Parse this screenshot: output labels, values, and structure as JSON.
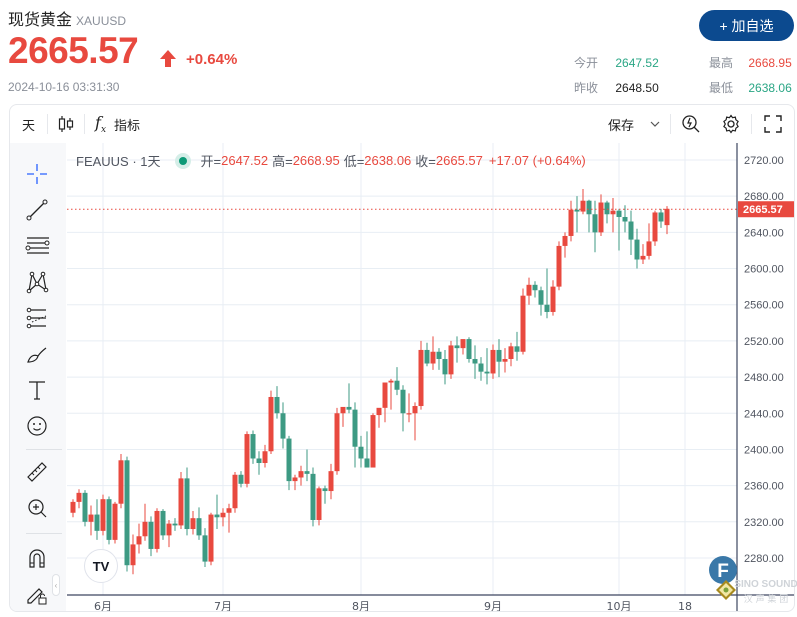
{
  "header": {
    "title": "现货黄金",
    "symbol": "XAUUSD",
    "price": "2665.57",
    "change_pct": "+0.64%",
    "timestamp": "2024-10-16 03:31:30",
    "add_watchlist_label": "+ 加自选",
    "stats": {
      "open_label": "今开",
      "open": "2647.52",
      "prev_close_label": "昨收",
      "prev_close": "2648.50",
      "high_label": "最高",
      "high": "2668.95",
      "low_label": "最低",
      "low": "2638.06"
    }
  },
  "toolbar": {
    "interval": "天",
    "indicators_label": "指标",
    "save_label": "保存"
  },
  "legend": {
    "symbol": "FEAUUS · 1天",
    "open_label": "开=",
    "open": "2647.52",
    "high_label": "高=",
    "high": "2668.95",
    "low_label": "低=",
    "low": "2638.06",
    "close_label": "收=",
    "close": "2665.57",
    "change": "+17.07 (+0.64%)"
  },
  "colors": {
    "up": "#e8493f",
    "down": "#3d9a83",
    "accent": "#0c4a8f",
    "grid": "#e8eef4"
  },
  "watermark": {
    "text": "SINO SOUND",
    "sub": "汉 声 集 团"
  },
  "chart_data": {
    "type": "candlestick",
    "title": "FEAUUS · 1天",
    "xlabel": "",
    "ylabel": "",
    "ylim": [
      2240,
      2730
    ],
    "y_ticks": [
      "2720.00",
      "2680.00",
      "2640.00",
      "2600.00",
      "2560.00",
      "2520.00",
      "2480.00",
      "2440.00",
      "2400.00",
      "2360.00",
      "2320.00",
      "2280.00"
    ],
    "x_ticks": [
      {
        "label": "6月",
        "index": 5
      },
      {
        "label": "7月",
        "index": 25
      },
      {
        "label": "8月",
        "index": 48
      },
      {
        "label": "9月",
        "index": 70
      },
      {
        "label": "10月",
        "index": 91
      },
      {
        "label": "18",
        "index": 102
      }
    ],
    "last_price_label": "2665.57",
    "up_color_meaning": "red = close > open",
    "candles": [
      [
        2330,
        2345,
        2325,
        2342
      ],
      [
        2342,
        2356,
        2335,
        2352
      ],
      [
        2352,
        2355,
        2315,
        2320
      ],
      [
        2320,
        2338,
        2305,
        2328
      ],
      [
        2328,
        2345,
        2300,
        2310
      ],
      [
        2310,
        2350,
        2305,
        2345
      ],
      [
        2345,
        2348,
        2295,
        2300
      ],
      [
        2300,
        2342,
        2296,
        2340
      ],
      [
        2340,
        2395,
        2335,
        2388
      ],
      [
        2388,
        2392,
        2265,
        2272
      ],
      [
        2272,
        2306,
        2262,
        2295
      ],
      [
        2295,
        2318,
        2285,
        2304
      ],
      [
        2304,
        2340,
        2299,
        2320
      ],
      [
        2320,
        2326,
        2282,
        2290
      ],
      [
        2290,
        2335,
        2286,
        2332
      ],
      [
        2332,
        2334,
        2300,
        2305
      ],
      [
        2305,
        2322,
        2292,
        2318
      ],
      [
        2318,
        2324,
        2310,
        2316
      ],
      [
        2316,
        2375,
        2312,
        2368
      ],
      [
        2368,
        2380,
        2305,
        2312
      ],
      [
        2312,
        2332,
        2306,
        2324
      ],
      [
        2324,
        2336,
        2300,
        2305
      ],
      [
        2305,
        2313,
        2270,
        2276
      ],
      [
        2276,
        2330,
        2272,
        2328
      ],
      [
        2328,
        2350,
        2312,
        2325
      ],
      [
        2325,
        2335,
        2315,
        2330
      ],
      [
        2330,
        2340,
        2308,
        2335
      ],
      [
        2335,
        2375,
        2330,
        2372
      ],
      [
        2372,
        2376,
        2358,
        2362
      ],
      [
        2362,
        2420,
        2358,
        2417
      ],
      [
        2417,
        2421,
        2384,
        2390
      ],
      [
        2390,
        2398,
        2372,
        2385
      ],
      [
        2385,
        2405,
        2380,
        2398
      ],
      [
        2398,
        2465,
        2395,
        2458
      ],
      [
        2458,
        2470,
        2434,
        2440
      ],
      [
        2440,
        2452,
        2401,
        2412
      ],
      [
        2412,
        2415,
        2355,
        2365
      ],
      [
        2365,
        2372,
        2355,
        2369
      ],
      [
        2369,
        2382,
        2360,
        2376
      ],
      [
        2376,
        2400,
        2365,
        2373
      ],
      [
        2373,
        2380,
        2315,
        2322
      ],
      [
        2322,
        2359,
        2316,
        2357
      ],
      [
        2357,
        2360,
        2340,
        2354
      ],
      [
        2354,
        2384,
        2345,
        2376
      ],
      [
        2376,
        2446,
        2372,
        2440
      ],
      [
        2440,
        2446,
        2425,
        2447
      ],
      [
        2447,
        2473,
        2440,
        2444
      ],
      [
        2444,
        2452,
        2380,
        2403
      ],
      [
        2403,
        2415,
        2380,
        2390
      ],
      [
        2390,
        2420,
        2383,
        2380
      ],
      [
        2380,
        2440,
        2380,
        2438
      ],
      [
        2438,
        2444,
        2424,
        2446
      ],
      [
        2446,
        2470,
        2430,
        2474
      ],
      [
        2474,
        2478,
        2444,
        2476
      ],
      [
        2476,
        2491,
        2460,
        2466
      ],
      [
        2466,
        2471,
        2420,
        2440
      ],
      [
        2440,
        2462,
        2430,
        2440
      ],
      [
        2440,
        2452,
        2410,
        2448
      ],
      [
        2448,
        2520,
        2444,
        2510
      ],
      [
        2510,
        2518,
        2492,
        2495
      ],
      [
        2495,
        2525,
        2488,
        2508
      ],
      [
        2508,
        2512,
        2488,
        2500
      ],
      [
        2500,
        2510,
        2472,
        2483
      ],
      [
        2483,
        2520,
        2478,
        2515
      ],
      [
        2515,
        2525,
        2496,
        2512
      ],
      [
        2512,
        2520,
        2505,
        2522
      ],
      [
        2522,
        2524,
        2496,
        2500
      ],
      [
        2500,
        2515,
        2478,
        2495
      ],
      [
        2495,
        2502,
        2476,
        2486
      ],
      [
        2486,
        2512,
        2472,
        2484
      ],
      [
        2484,
        2516,
        2478,
        2510
      ],
      [
        2510,
        2522,
        2480,
        2497
      ],
      [
        2497,
        2512,
        2485,
        2500
      ],
      [
        2500,
        2518,
        2492,
        2514
      ],
      [
        2514,
        2530,
        2498,
        2508
      ],
      [
        2508,
        2578,
        2505,
        2570
      ],
      [
        2570,
        2590,
        2560,
        2582
      ],
      [
        2582,
        2586,
        2568,
        2576
      ],
      [
        2576,
        2580,
        2548,
        2560
      ],
      [
        2560,
        2600,
        2545,
        2552
      ],
      [
        2552,
        2587,
        2548,
        2580
      ],
      [
        2580,
        2630,
        2576,
        2625
      ],
      [
        2625,
        2640,
        2612,
        2636
      ],
      [
        2636,
        2675,
        2630,
        2665
      ],
      [
        2665,
        2680,
        2640,
        2663
      ],
      [
        2663,
        2688,
        2660,
        2675
      ],
      [
        2675,
        2676,
        2640,
        2660
      ],
      [
        2660,
        2675,
        2618,
        2640
      ],
      [
        2640,
        2682,
        2636,
        2673
      ],
      [
        2673,
        2675,
        2650,
        2660
      ],
      [
        2660,
        2678,
        2640,
        2664
      ],
      [
        2664,
        2666,
        2620,
        2657
      ],
      [
        2657,
        2670,
        2640,
        2652
      ],
      [
        2652,
        2664,
        2615,
        2632
      ],
      [
        2632,
        2644,
        2600,
        2610
      ],
      [
        2610,
        2627,
        2605,
        2614
      ],
      [
        2614,
        2650,
        2610,
        2630
      ],
      [
        2630,
        2664,
        2625,
        2662
      ],
      [
        2662,
        2666,
        2645,
        2652
      ],
      [
        2648,
        2669,
        2638,
        2666
      ]
    ]
  }
}
